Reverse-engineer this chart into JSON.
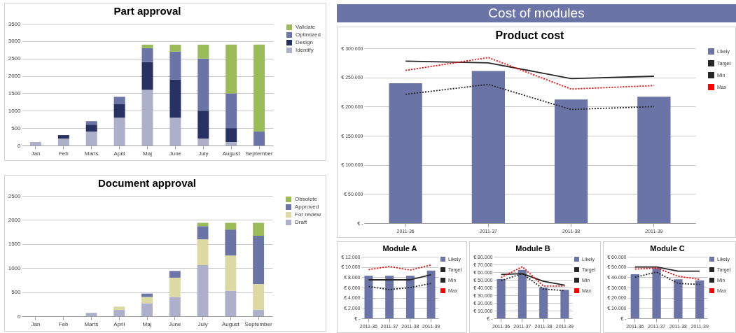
{
  "chart_data": [
    {
      "type": "bar",
      "title": "Part approval",
      "stacked": true,
      "grid": "y",
      "legend": "right",
      "categories": [
        "Jan",
        "Feb",
        "Marts",
        "April",
        "Maj",
        "June",
        "July",
        "August",
        "September"
      ],
      "ylim": [
        0,
        3500
      ],
      "yticks": [
        0,
        500,
        1000,
        1500,
        2000,
        2500,
        3000,
        3500
      ],
      "series": [
        {
          "name": "Identify",
          "color": "#aeb0cb",
          "values": [
            100,
            200,
            400,
            800,
            1600,
            800,
            200,
            100,
            0
          ]
        },
        {
          "name": "Design",
          "color": "#273263",
          "values": [
            0,
            100,
            200,
            400,
            800,
            1100,
            800,
            400,
            0
          ]
        },
        {
          "name": "Optimized",
          "color": "#6b74a6",
          "values": [
            0,
            0,
            100,
            200,
            400,
            800,
            1500,
            1000,
            400
          ]
        },
        {
          "name": "Validate",
          "color": "#9bbb59",
          "values": [
            0,
            0,
            0,
            0,
            100,
            200,
            400,
            1400,
            2500
          ]
        }
      ]
    },
    {
      "type": "bar",
      "title": "Document approval",
      "stacked": true,
      "grid": "y",
      "legend": "right",
      "categories": [
        "Jan",
        "Feb",
        "Marts",
        "April",
        "Maj",
        "June",
        "July",
        "August",
        "September"
      ],
      "ylim": [
        0,
        2500
      ],
      "yticks": [
        0,
        500,
        1000,
        1500,
        2000,
        2500
      ],
      "series": [
        {
          "name": "Draft",
          "color": "#aeb0cb",
          "values": [
            0,
            0,
            70,
            130,
            270,
            400,
            1060,
            530,
            130
          ]
        },
        {
          "name": "For review",
          "color": "#ddd9a3",
          "values": [
            0,
            0,
            0,
            70,
            130,
            400,
            540,
            730,
            540
          ]
        },
        {
          "name": "Approved",
          "color": "#6b74a6",
          "values": [
            0,
            0,
            0,
            0,
            70,
            140,
            270,
            540,
            1000
          ]
        },
        {
          "name": "Obsolete",
          "color": "#9bbb59",
          "values": [
            0,
            0,
            0,
            0,
            0,
            0,
            70,
            140,
            270
          ]
        }
      ]
    },
    {
      "type": "bar",
      "title": "Product cost",
      "annotations": [
        "Cost of modules"
      ],
      "grid": "y",
      "legend": "right",
      "categories": [
        "2011-36",
        "2011-37",
        "2011-38",
        "2011-39"
      ],
      "ylim": [
        0,
        300000
      ],
      "yticks": [
        {
          "value": 0,
          "label": "€ -"
        },
        {
          "value": 50000,
          "label": "€ 50.000"
        },
        {
          "value": 100000,
          "label": "€ 100.000"
        },
        {
          "value": 150000,
          "label": "€ 150.000"
        },
        {
          "value": 200000,
          "label": "€ 200.000"
        },
        {
          "value": 250000,
          "label": "€ 250.000"
        },
        {
          "value": 300000,
          "label": "€ 300.000"
        }
      ],
      "series": [
        {
          "name": "Likely",
          "color": "#6b74a6",
          "values": [
            240000,
            261000,
            212000,
            217000
          ]
        },
        {
          "name": "Target",
          "type": "line",
          "line_style": "solid",
          "color": "#262626",
          "values": [
            278000,
            275000,
            248000,
            252000
          ]
        },
        {
          "name": "Min",
          "type": "line",
          "line_style": "dotted",
          "color": "#262626",
          "values": [
            221000,
            238000,
            195000,
            200000
          ]
        },
        {
          "name": "Max",
          "type": "line",
          "line_style": "dotted",
          "color": "#ff0000",
          "values": [
            262000,
            284000,
            230000,
            236000
          ]
        }
      ]
    },
    {
      "type": "bar",
      "title": "Module A",
      "grid": "y",
      "legend": "right",
      "categories": [
        "2011-36",
        "2011-37",
        "2011-38",
        "2011-39"
      ],
      "ylim": [
        0,
        12000
      ],
      "yticks": [
        {
          "value": 0,
          "label": "€ -"
        },
        {
          "value": 2000,
          "label": "€ 2.000"
        },
        {
          "value": 4000,
          "label": "€ 4.000"
        },
        {
          "value": 6000,
          "label": "€ 6.000"
        },
        {
          "value": 8000,
          "label": "€ 8.000"
        },
        {
          "value": 10000,
          "label": "€ 10.000"
        },
        {
          "value": 12000,
          "label": "€ 12.000"
        }
      ],
      "series": [
        {
          "name": "Likely",
          "color": "#6b74a6",
          "values": [
            8300,
            8300,
            8300,
            9300
          ]
        },
        {
          "name": "Target",
          "type": "line",
          "line_style": "solid",
          "color": "#262626",
          "values": [
            7500,
            7500,
            7500,
            8500
          ]
        },
        {
          "name": "Min",
          "type": "line",
          "line_style": "dotted",
          "color": "#262626",
          "values": [
            6200,
            5600,
            6000,
            6800
          ]
        },
        {
          "name": "Max",
          "type": "line",
          "line_style": "dotted",
          "color": "#ff0000",
          "values": [
            9500,
            10100,
            9400,
            10400
          ]
        }
      ]
    },
    {
      "type": "bar",
      "title": "Module B",
      "grid": "y",
      "legend": "right",
      "categories": [
        "2011-36",
        "2011-37",
        "2011-38",
        "2011-39"
      ],
      "ylim": [
        0,
        80000
      ],
      "yticks": [
        {
          "value": 0,
          "label": "€ -"
        },
        {
          "value": 10000,
          "label": "€ 10.000"
        },
        {
          "value": 20000,
          "label": "€ 20.000"
        },
        {
          "value": 30000,
          "label": "€ 30.000"
        },
        {
          "value": 40000,
          "label": "€ 40.000"
        },
        {
          "value": 50000,
          "label": "€ 50.000"
        },
        {
          "value": 60000,
          "label": "€ 60.000"
        },
        {
          "value": 70000,
          "label": "€ 70.000"
        },
        {
          "value": 80000,
          "label": "€ 80.000"
        }
      ],
      "series": [
        {
          "name": "Likely",
          "color": "#6b74a6",
          "values": [
            51000,
            63000,
            40000,
            37000
          ]
        },
        {
          "name": "Target",
          "type": "line",
          "line_style": "solid",
          "color": "#262626",
          "values": [
            57000,
            58000,
            48000,
            43000
          ]
        },
        {
          "name": "Min",
          "type": "line",
          "line_style": "dotted",
          "color": "#262626",
          "values": [
            49000,
            58000,
            38000,
            36000
          ]
        },
        {
          "name": "Max",
          "type": "line",
          "line_style": "dotted",
          "color": "#ff0000",
          "values": [
            53000,
            67000,
            42000,
            42000
          ]
        }
      ]
    },
    {
      "type": "bar",
      "title": "Module C",
      "grid": "y",
      "legend": "right",
      "categories": [
        "2011-36",
        "2011-37",
        "2011-38",
        "2011-39"
      ],
      "ylim": [
        0,
        60000
      ],
      "yticks": [
        {
          "value": 0,
          "label": "€ -"
        },
        {
          "value": 10000,
          "label": "€ 10.000"
        },
        {
          "value": 20000,
          "label": "€ 20.000"
        },
        {
          "value": 30000,
          "label": "€ 30.000"
        },
        {
          "value": 40000,
          "label": "€ 40.000"
        },
        {
          "value": 50000,
          "label": "€ 50.000"
        },
        {
          "value": 60000,
          "label": "€ 60.000"
        }
      ],
      "series": [
        {
          "name": "Likely",
          "color": "#6b74a6",
          "values": [
            43000,
            49000,
            38000,
            37000
          ]
        },
        {
          "name": "Target",
          "type": "line",
          "line_style": "solid",
          "color": "#262626",
          "values": [
            50000,
            50000,
            46000,
            46000
          ]
        },
        {
          "name": "Min",
          "type": "line",
          "line_style": "dotted",
          "color": "#262626",
          "values": [
            40000,
            45000,
            34000,
            33000
          ]
        },
        {
          "name": "Max",
          "type": "line",
          "line_style": "dotted",
          "color": "#ff0000",
          "values": [
            48000,
            49000,
            41000,
            38000
          ]
        }
      ]
    }
  ]
}
